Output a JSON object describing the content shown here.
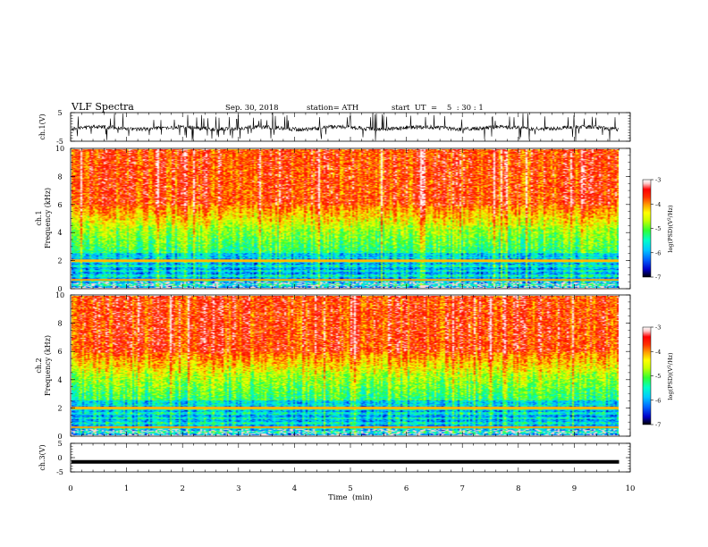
{
  "header": {
    "title": "VLF  Spectra",
    "date": "Sep. 30, 2018",
    "station": "station= ATH",
    "start_ut": "start  UT  =    5  : 30 : 1"
  },
  "chart_data": [
    {
      "panel": "ch1-waveform",
      "type": "line",
      "ylabel": "ch.1(V)",
      "ylim": [
        -5,
        5
      ],
      "yticks": [
        "5",
        "-5"
      ],
      "xlim": [
        0,
        10
      ],
      "series": [
        {
          "values_summary": "noisy waveform around -0.4 V with spikes to ±5 V, ending near 9.8 min"
        }
      ]
    },
    {
      "panel": "ch1-spectrogram",
      "type": "heatmap",
      "ylabel": "ch.1\nFrequency  (kHz)",
      "ylim": [
        0,
        10
      ],
      "yticks": [
        "0",
        "2",
        "4",
        "6",
        "8",
        "10"
      ],
      "xlim": [
        0,
        10
      ],
      "data_end_min": 9.8,
      "colorbar": {
        "label": "log(PSD)(V²/Hz)",
        "range": [
          -7,
          -3
        ],
        "ticks": [
          "-3",
          "-4",
          "-5",
          "-6",
          "-7"
        ]
      }
    },
    {
      "panel": "ch2-spectrogram",
      "type": "heatmap",
      "ylabel": "ch.2\nFrequency  (kHz)",
      "ylim": [
        0,
        10
      ],
      "yticks": [
        "0",
        "2",
        "4",
        "6",
        "8",
        "10"
      ],
      "xlim": [
        0,
        10
      ],
      "data_end_min": 9.8,
      "colorbar": {
        "label": "log(PSD)(V²/Hz)",
        "range": [
          -7,
          -3
        ],
        "ticks": [
          "-3",
          "-4",
          "-5",
          "-6",
          "-7"
        ]
      }
    },
    {
      "panel": "ch3-waveform",
      "type": "line",
      "ylabel": "ch.3(V)",
      "ylim": [
        -5,
        5
      ],
      "yticks": [
        "5",
        "0",
        "-5"
      ],
      "xlim": [
        0,
        10
      ],
      "series": [
        {
          "values_summary": "flat line near -1.5 V from 0 to 9.8 min"
        }
      ]
    }
  ],
  "xaxis": {
    "label": "Time  (min)",
    "ticks": [
      "0",
      "1",
      "2",
      "3",
      "4",
      "5",
      "6",
      "7",
      "8",
      "9",
      "10"
    ]
  },
  "colors": {
    "colormap": [
      "#000000",
      "#0000c8",
      "#0064ff",
      "#00c8ff",
      "#00ffc8",
      "#32ff32",
      "#c8ff00",
      "#ffff00",
      "#ffa000",
      "#ff3200",
      "#ff0000",
      "#ffc8c8",
      "#ffffff"
    ]
  }
}
